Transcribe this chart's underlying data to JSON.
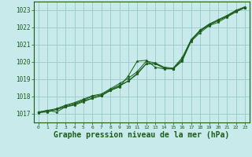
{
  "background_color": "#c8eaea",
  "grid_color": "#9ecece",
  "line_color": "#1a5c1a",
  "marker_color": "#1a5c1a",
  "xlabel": "Graphe pression niveau de la mer (hPa)",
  "xlabel_fontsize": 7.0,
  "ylim": [
    1016.5,
    1023.5
  ],
  "xlim": [
    -0.5,
    23.5
  ],
  "yticks": [
    1017,
    1018,
    1019,
    1020,
    1021,
    1022,
    1023
  ],
  "xticks": [
    0,
    1,
    2,
    3,
    4,
    5,
    6,
    7,
    8,
    9,
    10,
    11,
    12,
    13,
    14,
    15,
    16,
    17,
    18,
    19,
    20,
    21,
    22,
    23
  ],
  "series": [
    [
      1017.1,
      1017.2,
      1017.1,
      1017.4,
      1017.5,
      1017.7,
      1017.9,
      1018.05,
      1018.35,
      1018.55,
      1019.2,
      1020.05,
      1020.1,
      1019.7,
      1019.6,
      1019.6,
      1020.05,
      1021.2,
      1021.7,
      1022.1,
      1022.3,
      1022.6,
      1022.9,
      1023.15
    ],
    [
      1017.1,
      1017.2,
      1017.3,
      1017.5,
      1017.65,
      1017.85,
      1018.05,
      1018.15,
      1018.45,
      1018.75,
      1019.05,
      1019.45,
      1020.05,
      1019.95,
      1019.7,
      1019.65,
      1020.25,
      1021.3,
      1021.85,
      1022.2,
      1022.45,
      1022.7,
      1023.0,
      1023.2
    ],
    [
      1017.05,
      1017.15,
      1017.25,
      1017.45,
      1017.6,
      1017.8,
      1018.0,
      1018.1,
      1018.4,
      1018.65,
      1018.9,
      1019.35,
      1019.9,
      1019.9,
      1019.65,
      1019.6,
      1020.15,
      1021.25,
      1021.8,
      1022.15,
      1022.4,
      1022.65,
      1022.95,
      1023.15
    ],
    [
      1017.1,
      1017.1,
      1017.25,
      1017.4,
      1017.55,
      1017.75,
      1017.9,
      1018.05,
      1018.35,
      1018.6,
      1018.9,
      1019.3,
      1019.9,
      1019.9,
      1019.65,
      1019.6,
      1020.15,
      1021.25,
      1021.8,
      1022.15,
      1022.4,
      1022.65,
      1022.95,
      1023.15
    ]
  ]
}
